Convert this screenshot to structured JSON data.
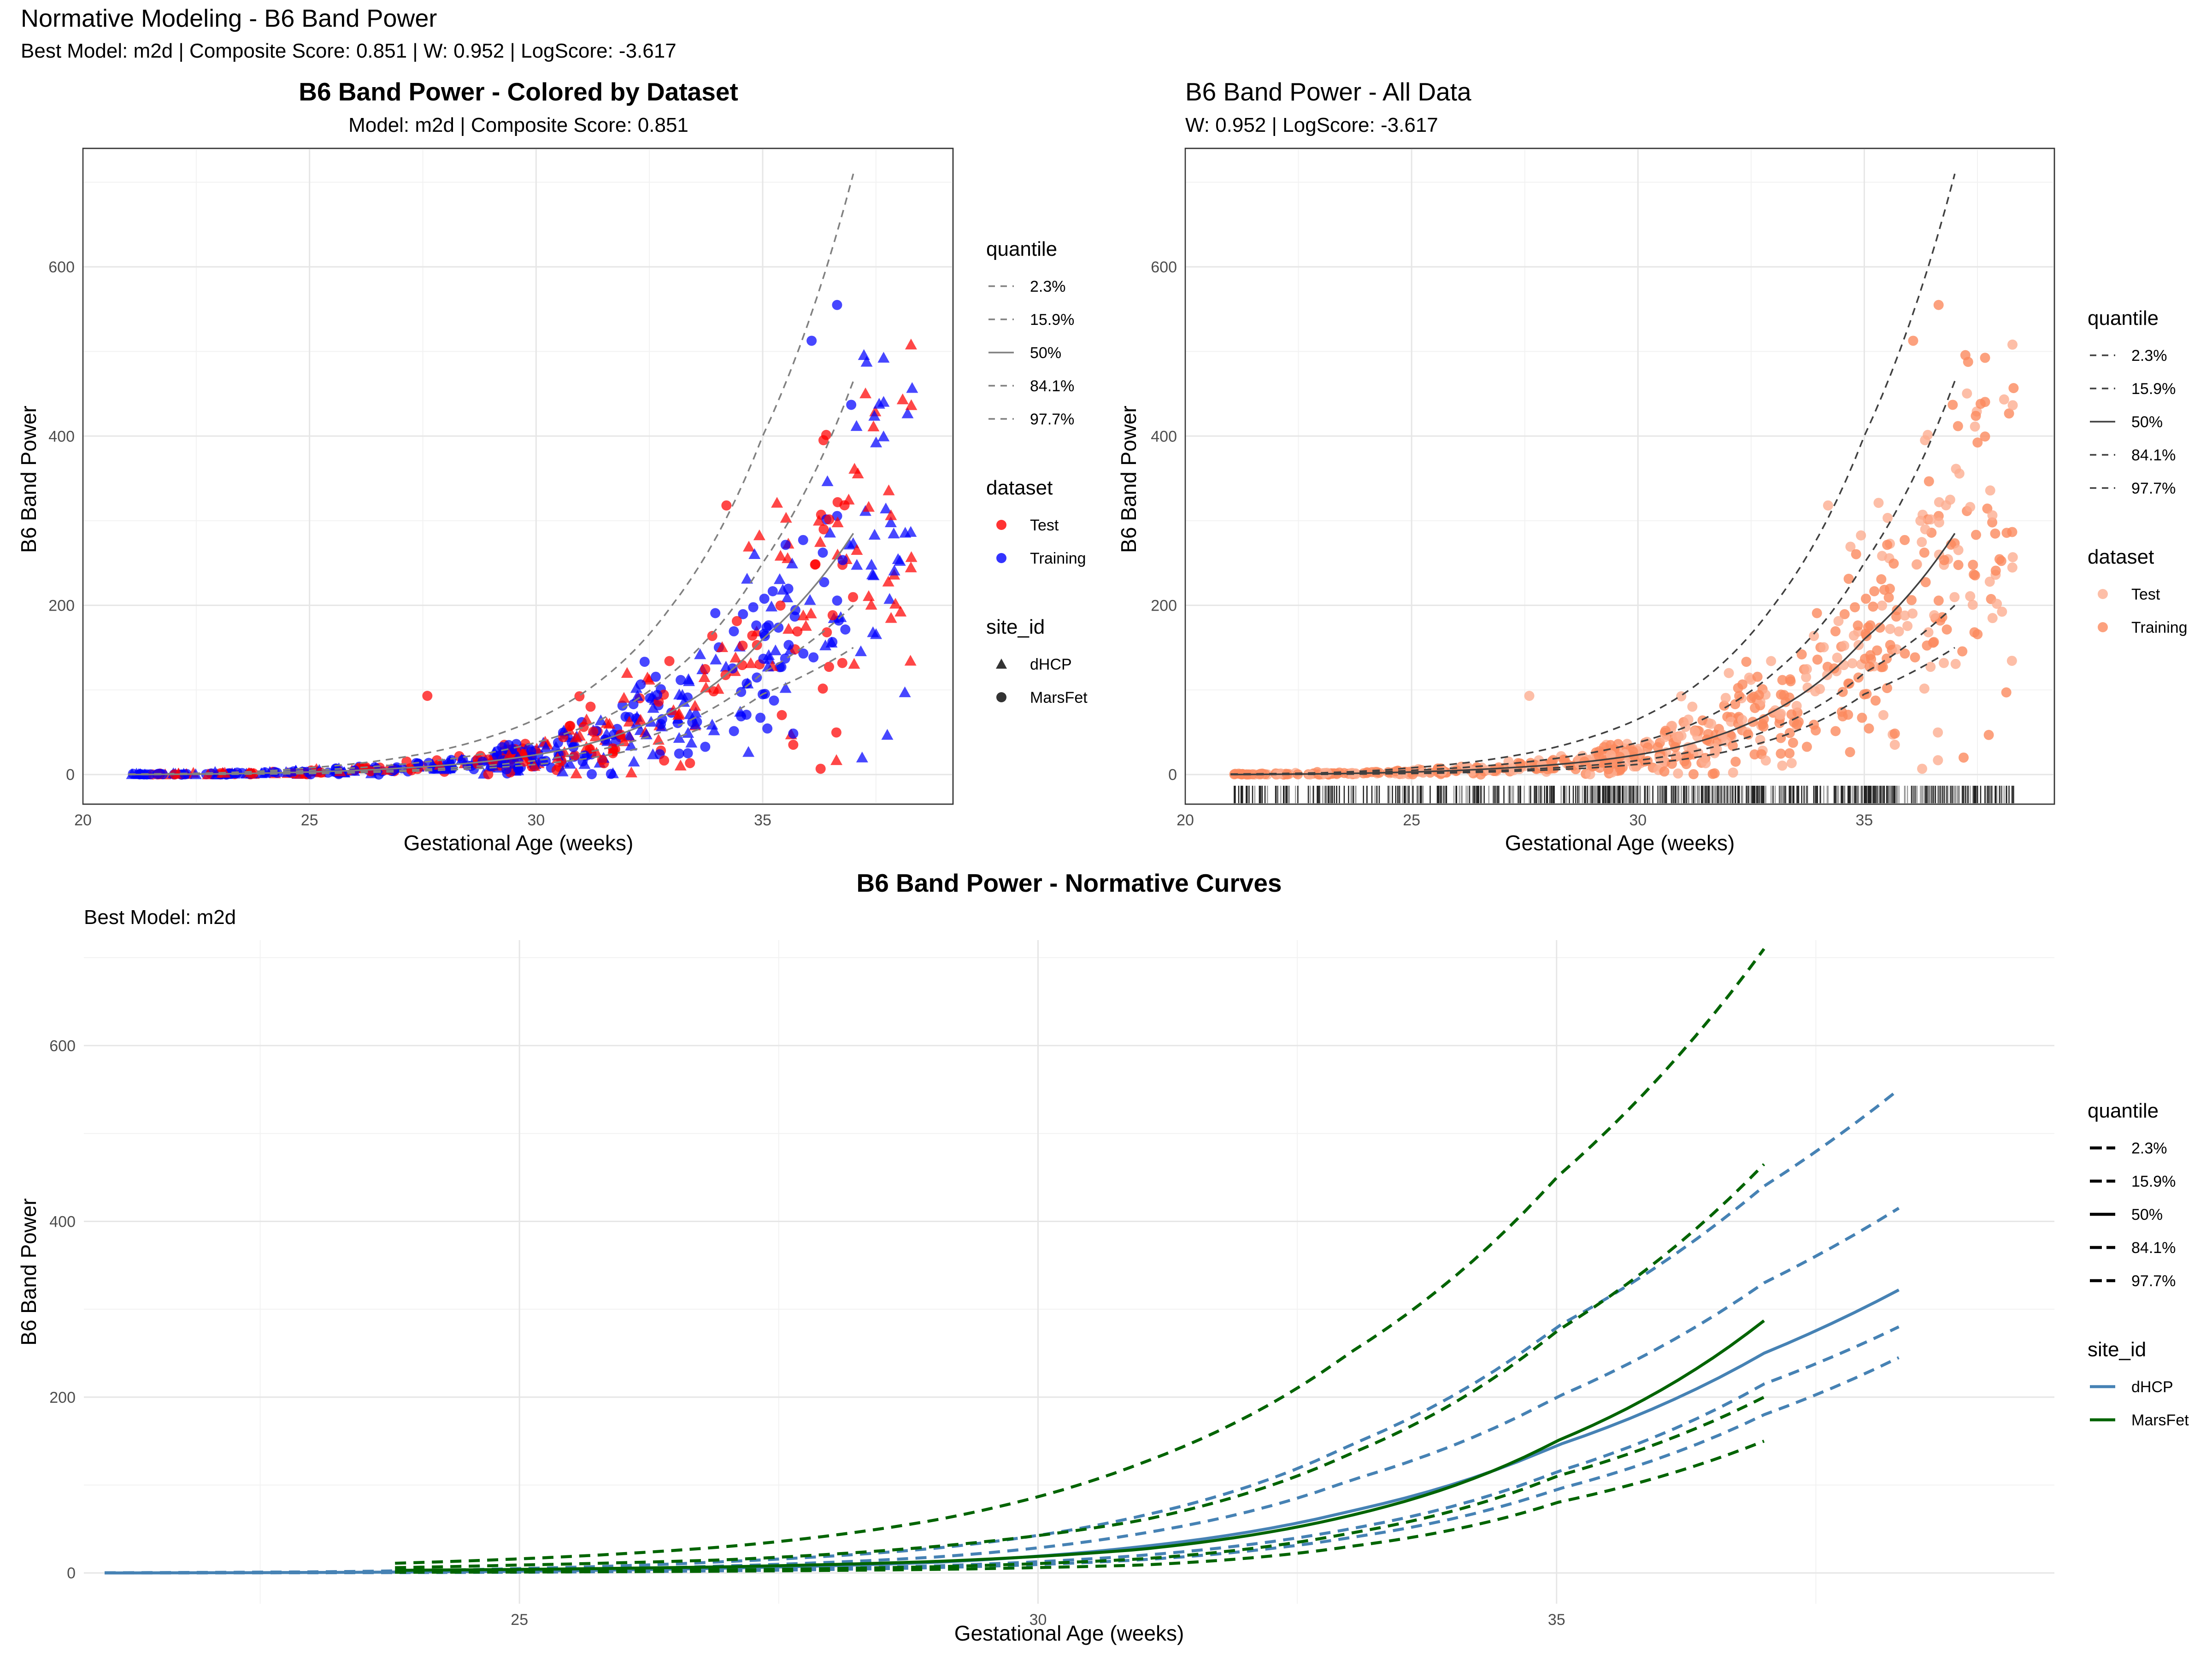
{
  "figure": {
    "title": "Normative Modeling - B6 Band Power",
    "subtitle": "Best Model: m2d | Composite Score: 0.851 | W: 0.952 | LogScore: -3.617"
  },
  "chart_data": [
    {
      "id": "panel-a",
      "type": "scatter",
      "title": "B6 Band Power - Colored by Dataset",
      "subtitle": "Model: m2d | Composite Score: 0.851",
      "xlabel": "Gestational Age (weeks)",
      "ylabel": "B6 Band Power",
      "xlim": [
        20,
        39.2
      ],
      "ylim": [
        -35,
        740
      ],
      "xticks": [
        20,
        25,
        30,
        35
      ],
      "yticks": [
        0,
        200,
        400,
        600
      ],
      "grid": true,
      "legend_position": "right",
      "quantile_curves": {
        "x": [
          21,
          23,
          25,
          27,
          29,
          31,
          33,
          35,
          37
        ],
        "series": [
          {
            "name": "2.3%",
            "style": "dashed",
            "y": [
              0,
              0.3,
              1.2,
              3.5,
              8,
              18,
              42,
              95,
              150
            ]
          },
          {
            "name": "15.9%",
            "style": "dashed",
            "y": [
              0,
              0.5,
              2,
              5,
              11,
              25,
              55,
              120,
              200
            ]
          },
          {
            "name": "50%",
            "style": "solid",
            "y": [
              0,
              0.8,
              3,
              7.5,
              16,
              34,
              75,
              160,
              285
            ]
          },
          {
            "name": "84.1%",
            "style": "dashed",
            "y": [
              0.2,
              1.2,
              5,
              12,
              26,
              55,
              120,
              250,
              465
            ]
          },
          {
            "name": "97.7%",
            "style": "dashed",
            "y": [
              0.5,
              2,
              8,
              20,
              45,
              95,
              200,
              400,
              710
            ]
          }
        ]
      },
      "colors": {
        "Test": "#ff0000",
        "Training": "#0000ff",
        "curve": "#808080"
      },
      "legends": [
        {
          "title": "quantile",
          "items": [
            "2.3%",
            "15.9%",
            "50%",
            "84.1%",
            "97.7%"
          ]
        },
        {
          "title": "dataset",
          "items": [
            "Test",
            "Training"
          ]
        },
        {
          "title": "site_id",
          "items": [
            "dHCP",
            "MarsFet"
          ]
        }
      ]
    },
    {
      "id": "panel-b",
      "type": "scatter",
      "title": "B6 Band Power - All Data",
      "subtitle": "W: 0.952 | LogScore: -3.617",
      "xlabel": "Gestational Age (weeks)",
      "ylabel": "B6 Band Power",
      "xlim": [
        20,
        39.2
      ],
      "ylim": [
        -35,
        740
      ],
      "xticks": [
        20,
        25,
        30,
        35
      ],
      "yticks": [
        0,
        200,
        400,
        600
      ],
      "grid": true,
      "rug": true,
      "legend_position": "right",
      "colors": {
        "Test": "#fcae91",
        "Training": "#fb8a5e",
        "curve": "#404040"
      },
      "legends": [
        {
          "title": "quantile",
          "items": [
            "2.3%",
            "15.9%",
            "50%",
            "84.1%",
            "97.7%"
          ]
        },
        {
          "title": "dataset",
          "items": [
            "Test",
            "Training"
          ]
        }
      ]
    },
    {
      "id": "panel-c",
      "type": "line",
      "title": "B6 Band Power - Normative Curves",
      "subtitle": "Best Model: m2d",
      "xlabel": "Gestational Age (weeks)",
      "ylabel": "B6 Band Power",
      "xlim": [
        20.8,
        39.8
      ],
      "ylim": [
        -35,
        720
      ],
      "xticks": [
        25,
        30,
        35
      ],
      "yticks": [
        0,
        200,
        400,
        600
      ],
      "grid": true,
      "legend_position": "right",
      "series": [
        {
          "name": "dHCP",
          "color": "#4682b4",
          "x": [
            21,
            23,
            25,
            27,
            29,
            31,
            33,
            35,
            37,
            38.3
          ],
          "quantiles": {
            "2.3%": [
              0,
              0.2,
              0.8,
              2.5,
              6,
              15,
              40,
              95,
              180,
              245
            ],
            "15.9%": [
              0,
              0.3,
              1.2,
              3.5,
              8,
              20,
              50,
              115,
              215,
              280
            ],
            "50%": [
              0,
              0.5,
              2,
              5.5,
              12,
              30,
              70,
              145,
              250,
              322
            ],
            "84.1%": [
              0.1,
              0.8,
              3,
              8,
              18,
              45,
              105,
              200,
              330,
              415
            ],
            "97.7%": [
              0.2,
              1.2,
              5,
              13,
              28,
              65,
              145,
              280,
              440,
              550
            ]
          }
        },
        {
          "name": "MarsFet",
          "color": "#006400",
          "x": [
            23.8,
            25,
            27,
            29,
            31,
            33,
            35,
            37
          ],
          "quantiles": {
            "2.3%": [
              0.8,
              1,
              2,
              4,
              9,
              30,
              80,
              150
            ],
            "15.9%": [
              1.5,
              2,
              3.5,
              7,
              16,
              45,
              110,
              200
            ],
            "50%": [
              3,
              4,
              7,
              13,
              27,
              65,
              150,
              287
            ],
            "84.1%": [
              6,
              9,
              15,
              30,
              60,
              135,
              275,
              465
            ],
            "97.7%": [
              11,
              16,
              30,
              60,
              125,
              250,
              450,
              710
            ]
          }
        }
      ],
      "legends": [
        {
          "title": "quantile",
          "items": [
            "2.3%",
            "15.9%",
            "50%",
            "84.1%",
            "97.7%"
          ]
        },
        {
          "title": "site_id",
          "items": [
            "dHCP",
            "MarsFet"
          ]
        }
      ]
    }
  ]
}
